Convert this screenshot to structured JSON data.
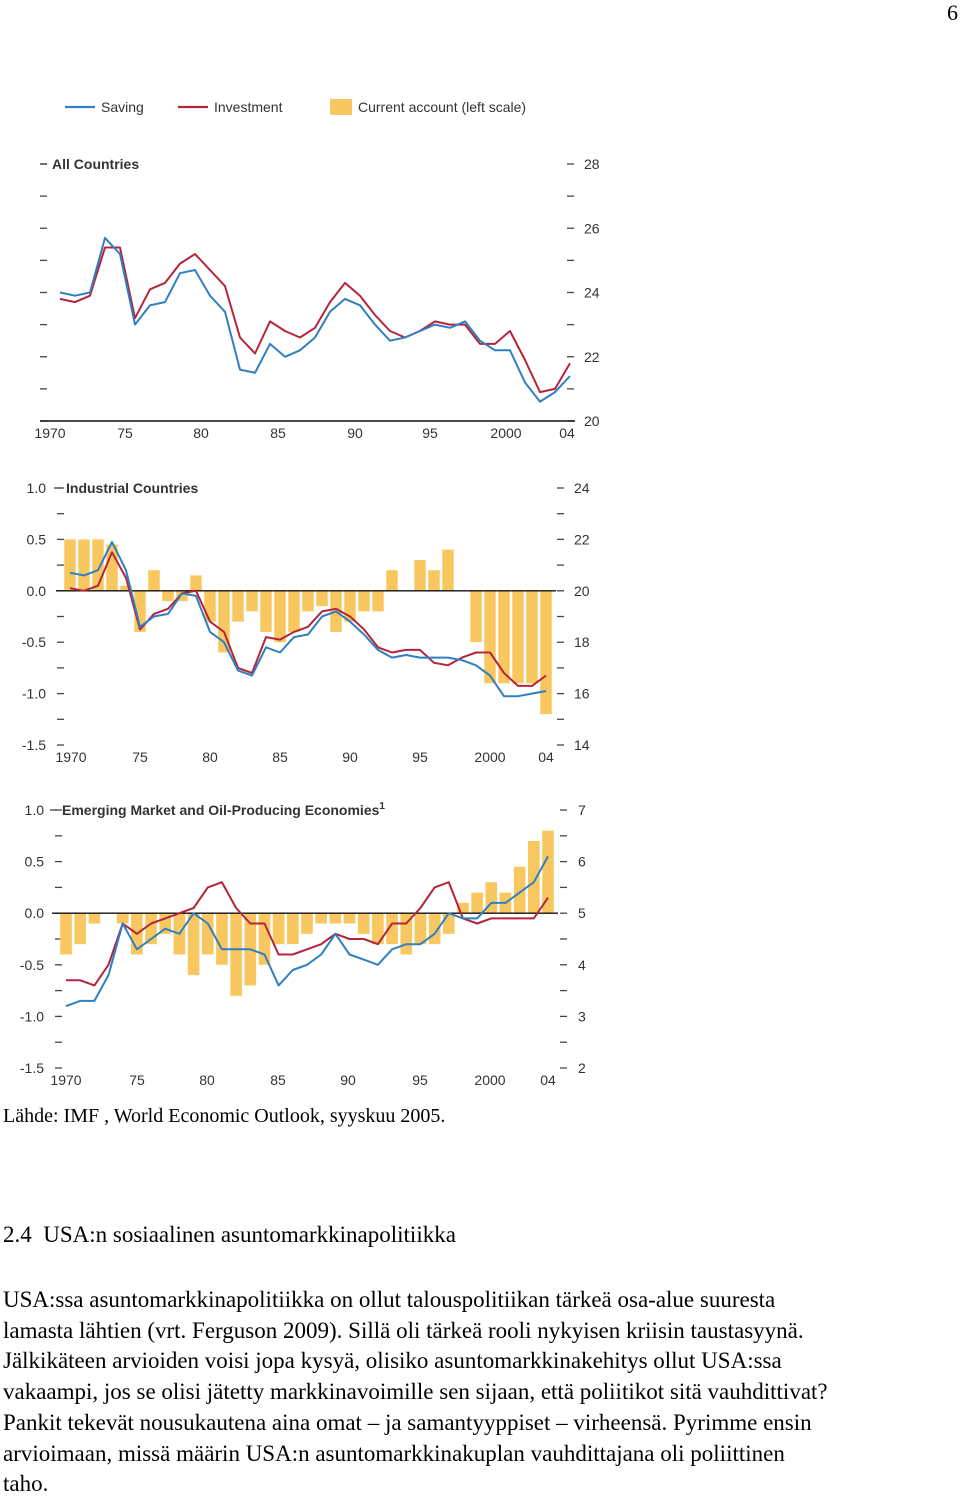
{
  "page_number": "6",
  "chart_data": {
    "type": "line",
    "legend": [
      {
        "label": "Saving",
        "kind": "line",
        "color": "#2f7fc1"
      },
      {
        "label": "Investment",
        "kind": "line",
        "color": "#b5243a"
      },
      {
        "label": "Current account (left scale)",
        "kind": "bar",
        "color": "#f8c760"
      }
    ],
    "x_ticks": [
      "1970",
      "75",
      "80",
      "85",
      "90",
      "95",
      "2000",
      "04"
    ],
    "panels": [
      {
        "title": "All Countries",
        "title_superscript": "",
        "years": [
          1970,
          2004
        ],
        "right_axis": {
          "range": [
            20,
            28
          ],
          "ticks": [
            "28",
            "26",
            "24",
            "22",
            "20"
          ]
        },
        "left_axis": null,
        "saving": [
          24.0,
          23.9,
          24.0,
          25.7,
          25.2,
          23.0,
          23.6,
          23.7,
          24.6,
          24.7,
          23.9,
          23.4,
          21.6,
          21.5,
          22.4,
          22.0,
          22.2,
          22.6,
          23.4,
          23.8,
          23.6,
          23.0,
          22.5,
          22.6,
          22.8,
          23.0,
          22.9,
          23.1,
          22.5,
          22.2,
          22.2,
          21.2,
          20.6,
          20.9,
          21.4
        ],
        "investment": [
          23.8,
          23.7,
          23.9,
          25.4,
          25.4,
          23.2,
          24.1,
          24.3,
          24.9,
          25.2,
          24.7,
          24.2,
          22.6,
          22.1,
          23.1,
          22.8,
          22.6,
          22.9,
          23.7,
          24.3,
          23.9,
          23.3,
          22.8,
          22.6,
          22.8,
          23.1,
          23.0,
          23.0,
          22.4,
          22.4,
          22.8,
          21.9,
          20.9,
          21.0,
          21.8
        ],
        "current_account": []
      },
      {
        "title": "Industrial Countries",
        "title_superscript": "",
        "years": [
          1970,
          2004
        ],
        "right_axis": {
          "range": [
            14,
            24
          ],
          "ticks": [
            "24",
            "22",
            "20",
            "18",
            "16",
            "14"
          ]
        },
        "left_axis": {
          "range": [
            -1.5,
            1.0
          ],
          "ticks": [
            "1.0",
            "0.5",
            "0.0",
            "-0.5",
            "-1.0",
            "-1.5"
          ]
        },
        "saving": [
          20.7,
          20.6,
          20.8,
          21.9,
          20.8,
          18.6,
          19.0,
          19.1,
          19.9,
          19.8,
          18.4,
          18.0,
          16.9,
          16.7,
          17.8,
          17.6,
          18.2,
          18.3,
          19.0,
          19.2,
          18.8,
          18.3,
          17.7,
          17.4,
          17.5,
          17.4,
          17.4,
          17.4,
          17.3,
          17.1,
          16.7,
          15.9,
          15.9,
          16.0,
          16.1
        ],
        "investment": [
          20.1,
          20.0,
          20.2,
          21.5,
          20.5,
          18.5,
          19.1,
          19.3,
          19.9,
          20.0,
          18.8,
          18.4,
          17.0,
          16.8,
          18.2,
          18.1,
          18.4,
          18.6,
          19.2,
          19.3,
          19.0,
          18.5,
          17.8,
          17.6,
          17.7,
          17.7,
          17.2,
          17.1,
          17.4,
          17.6,
          17.6,
          16.8,
          16.3,
          16.3,
          16.7
        ],
        "current_account": [
          0.5,
          0.5,
          0.5,
          0.45,
          0.05,
          -0.4,
          0.2,
          -0.1,
          -0.1,
          0.15,
          -0.3,
          -0.6,
          -0.3,
          -0.2,
          -0.4,
          -0.5,
          -0.4,
          -0.2,
          -0.15,
          -0.4,
          -0.3,
          -0.2,
          -0.2,
          0.2,
          0.0,
          0.3,
          0.2,
          0.4,
          0.0,
          -0.5,
          -0.9,
          -0.9,
          -0.9,
          -0.9,
          -1.2
        ]
      },
      {
        "title": "Emerging Market and Oil-Producing Economies",
        "title_superscript": "1",
        "years": [
          1970,
          2004
        ],
        "right_axis": {
          "range": [
            2,
            7
          ],
          "ticks": [
            "7",
            "6",
            "5",
            "4",
            "3",
            "2"
          ]
        },
        "left_axis": {
          "range": [
            -1.5,
            1.0
          ],
          "ticks": [
            "1.0",
            "0.5",
            "0.0",
            "-0.5",
            "-1.0",
            "-1.5"
          ]
        },
        "saving": [
          3.2,
          3.3,
          3.3,
          3.8,
          4.8,
          4.3,
          4.5,
          4.7,
          4.6,
          5.0,
          4.8,
          4.3,
          4.3,
          4.3,
          4.2,
          3.6,
          3.9,
          4.0,
          4.2,
          4.6,
          4.2,
          4.1,
          4.0,
          4.3,
          4.4,
          4.4,
          4.6,
          5.0,
          4.9,
          4.9,
          5.2,
          5.2,
          5.4,
          5.6,
          6.1
        ],
        "investment": [
          3.7,
          3.7,
          3.6,
          4.0,
          4.8,
          4.6,
          4.8,
          4.9,
          5.0,
          5.1,
          5.5,
          5.6,
          5.1,
          4.8,
          4.8,
          4.2,
          4.2,
          4.3,
          4.4,
          4.6,
          4.5,
          4.5,
          4.4,
          4.8,
          4.8,
          5.1,
          5.5,
          5.6,
          4.9,
          4.8,
          4.9,
          4.9,
          4.9,
          4.9,
          5.3
        ],
        "current_account": [
          -0.4,
          -0.3,
          -0.1,
          0.0,
          -0.1,
          -0.4,
          -0.3,
          -0.2,
          -0.4,
          -0.6,
          -0.4,
          -0.5,
          -0.8,
          -0.7,
          -0.5,
          -0.3,
          -0.3,
          -0.2,
          -0.1,
          -0.1,
          -0.1,
          -0.2,
          -0.3,
          -0.3,
          -0.4,
          -0.3,
          -0.3,
          -0.2,
          0.1,
          0.2,
          0.3,
          0.2,
          0.45,
          0.7,
          0.8
        ]
      }
    ]
  },
  "source_line": "Lähde: IMF , World Economic Outlook, syyskuu 2005.",
  "section": {
    "number": "2.4",
    "title": "USA:n sosiaalinen asuntomarkkinapolitiikka"
  },
  "body_lines": [
    "USA:ssa asuntomarkkinapolitiikka on ollut talouspolitiikan tärkeä osa-alue suuresta",
    "lamasta lähtien (vrt. Ferguson 2009). Sillä oli tärkeä rooli nykyisen kriisin taustasyynä.",
    "Jälkikäteen arvioiden voisi jopa kysyä, olisiko asuntomarkkinakehitys ollut USA:ssa",
    "vakaampi, jos se olisi jätetty markkinavoimille sen sijaan, että poliitikot sitä vauhdittivat?",
    "Pankit tekevät nousukautena aina omat – ja samantyyppiset – virheensä. Pyrimme ensin",
    "arvioimaan, missä määrin USA:n asuntomarkkinakuplan vauhdittajana oli poliittinen",
    "taho."
  ]
}
